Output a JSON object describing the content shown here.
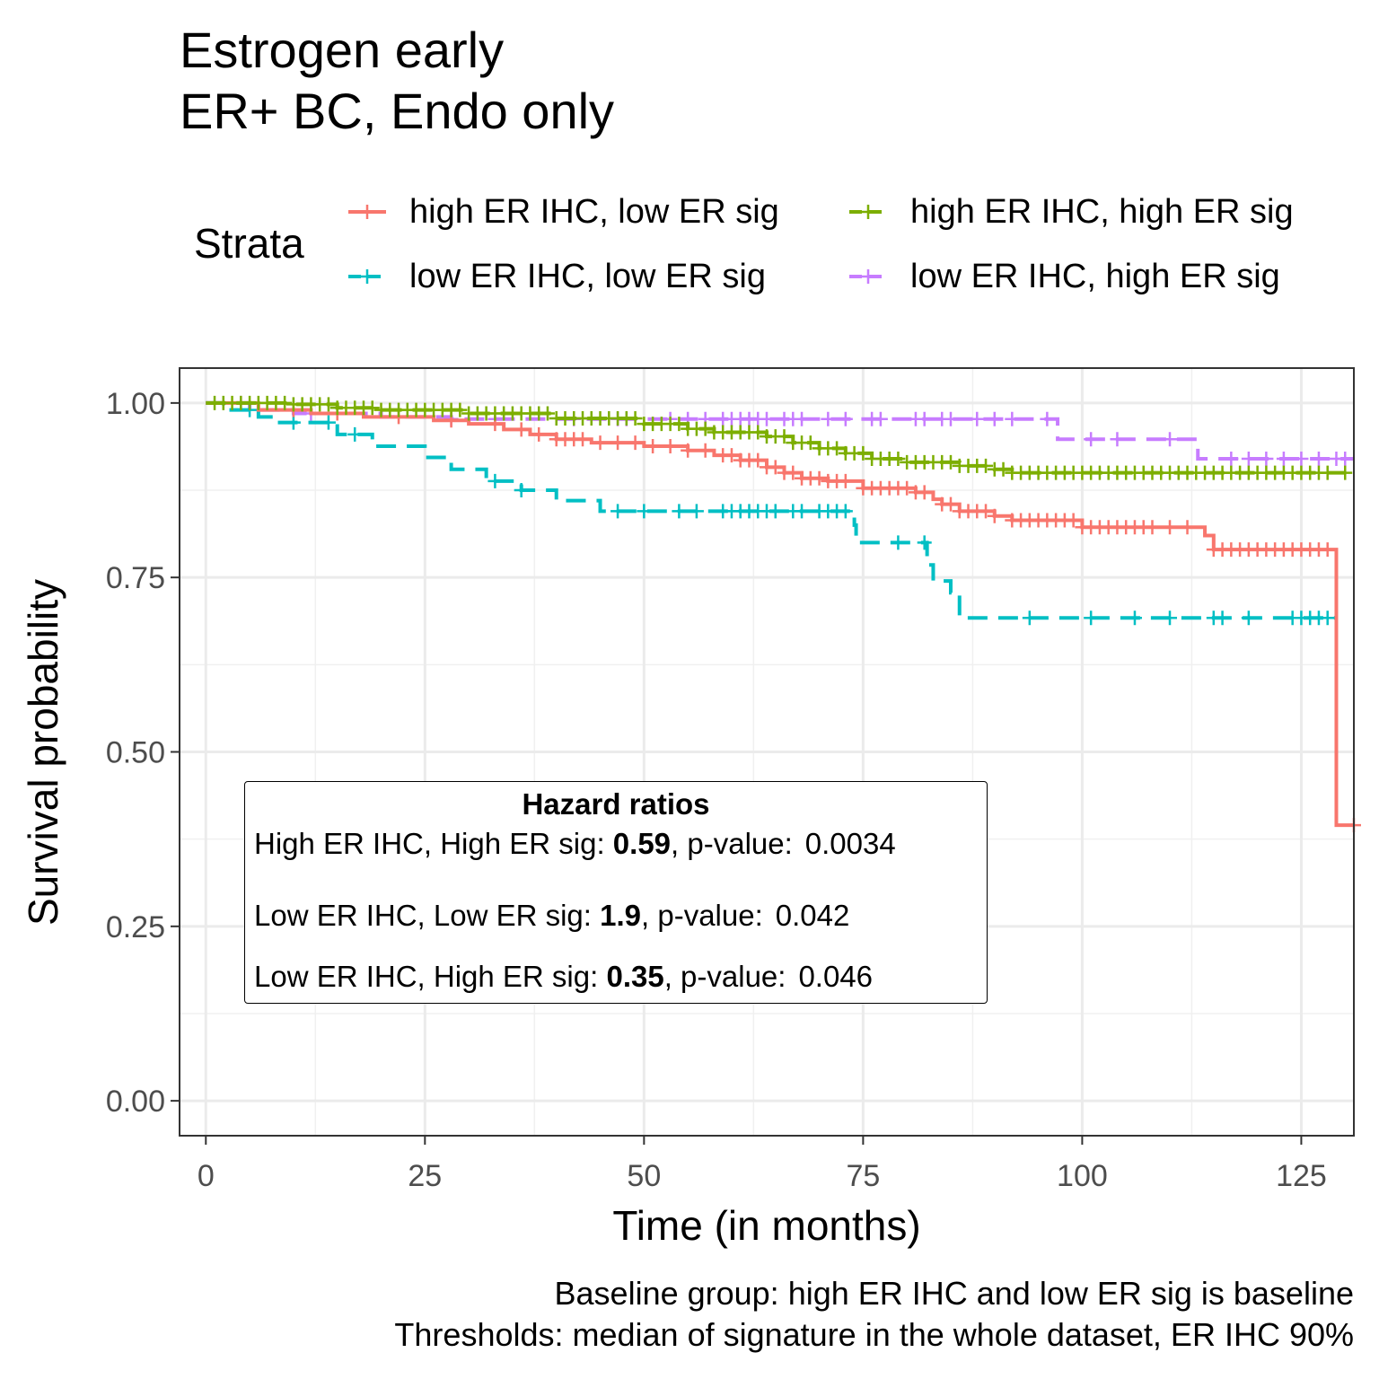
{
  "title_line1": "Estrogen early",
  "title_line2": "ER+ BC, Endo only",
  "legend": {
    "title": "Strata",
    "position": "top",
    "items": [
      {
        "label": "high ER IHC, low ER sig",
        "color": "#F8766D",
        "dash": "solid"
      },
      {
        "label": "high ER IHC, high ER sig",
        "color": "#7CAE00",
        "dash": "dashed"
      },
      {
        "label": "low ER IHC, low ER sig",
        "color": "#00BFC4",
        "dash": "dashed"
      },
      {
        "label": "low ER IHC, high ER sig",
        "color": "#C77CFF",
        "dash": "dashed"
      }
    ]
  },
  "hazard_box": {
    "title": "Hazard ratios",
    "rows": [
      {
        "prefix": "High ER IHC, High ER sig:",
        "hr": "0.59",
        "mid": ", p-value:",
        "p": "0.0034"
      },
      {
        "prefix": "Low ER IHC, Low ER sig:",
        "hr": "1.9",
        "mid": ", p-value:",
        "p": "0.042"
      },
      {
        "prefix": "Low ER IHC, High ER sig:",
        "hr": "0.35",
        "mid": ", p-value:",
        "p": "0.046"
      }
    ]
  },
  "caption_line1": "Baseline group: high ER IHC and low ER sig is baseline",
  "caption_line2": "Thresholds: median of signature in the whole dataset, ER IHC 90%",
  "chart_data": {
    "type": "line",
    "subtype": "kaplan-meier step",
    "xlabel": "Time (in months)",
    "ylabel": "Survival probability",
    "xlim": [
      -3,
      131
    ],
    "ylim": [
      -0.05,
      1.05
    ],
    "xticks": [
      0,
      25,
      50,
      75,
      100,
      125
    ],
    "xtick_labels": [
      "0",
      "25",
      "50",
      "75",
      "100",
      "125"
    ],
    "yticks": [
      0,
      0.25,
      0.5,
      0.75,
      1.0
    ],
    "ytick_labels": [
      "0.00",
      "0.25",
      "0.50",
      "0.75",
      "1.00"
    ],
    "grid": true,
    "series": [
      {
        "name": "high ER IHC, low ER sig",
        "color": "#F8766D",
        "dash": "solid",
        "steps": [
          [
            0,
            1.0
          ],
          [
            6,
            0.99
          ],
          [
            12,
            0.985
          ],
          [
            18,
            0.98
          ],
          [
            26,
            0.975
          ],
          [
            30,
            0.97
          ],
          [
            34,
            0.962
          ],
          [
            37,
            0.955
          ],
          [
            40,
            0.948
          ],
          [
            44,
            0.943
          ],
          [
            50,
            0.938
          ],
          [
            55,
            0.932
          ],
          [
            58,
            0.925
          ],
          [
            61,
            0.918
          ],
          [
            64,
            0.908
          ],
          [
            66,
            0.9
          ],
          [
            68,
            0.892
          ],
          [
            71,
            0.888
          ],
          [
            75,
            0.878
          ],
          [
            81,
            0.872
          ],
          [
            83,
            0.862
          ],
          [
            84,
            0.855
          ],
          [
            86,
            0.845
          ],
          [
            90,
            0.838
          ],
          [
            92,
            0.832
          ],
          [
            100,
            0.822
          ],
          [
            114,
            0.81
          ],
          [
            115,
            0.79
          ],
          [
            129,
            0.79
          ],
          [
            129,
            0.395
          ],
          [
            131,
            0.395
          ]
        ],
        "censor_x": [
          10,
          15,
          22,
          28,
          33,
          36,
          38,
          40,
          41,
          42,
          43,
          45,
          47,
          49,
          51,
          53,
          55,
          57,
          59,
          60,
          61,
          62,
          63,
          64,
          65,
          66,
          67,
          68,
          69,
          70,
          71,
          72,
          73,
          75,
          76,
          77,
          78,
          79,
          80,
          81,
          82,
          84,
          85,
          86,
          87,
          88,
          89,
          90,
          92,
          93,
          94,
          95,
          96,
          97,
          98,
          99,
          100,
          101,
          102,
          103,
          104,
          105,
          106,
          107,
          108,
          110,
          112,
          115,
          116,
          117,
          118,
          119,
          120,
          121,
          122,
          123,
          124,
          125,
          126,
          127,
          128,
          131
        ]
      },
      {
        "name": "high ER IHC, high ER sig",
        "color": "#7CAE00",
        "dash": "dashed",
        "steps": [
          [
            0,
            1.0
          ],
          [
            10,
            0.998
          ],
          [
            15,
            0.993
          ],
          [
            20,
            0.99
          ],
          [
            30,
            0.985
          ],
          [
            40,
            0.978
          ],
          [
            50,
            0.97
          ],
          [
            55,
            0.963
          ],
          [
            58,
            0.958
          ],
          [
            64,
            0.952
          ],
          [
            67,
            0.943
          ],
          [
            70,
            0.935
          ],
          [
            73,
            0.928
          ],
          [
            76,
            0.92
          ],
          [
            80,
            0.915
          ],
          [
            86,
            0.91
          ],
          [
            90,
            0.905
          ],
          [
            92,
            0.9
          ],
          [
            131,
            0.9
          ]
        ],
        "censor_x": [
          1,
          2,
          3,
          4,
          5,
          6,
          7,
          8,
          9,
          10,
          11,
          12,
          13,
          14,
          15,
          16,
          17,
          18,
          19,
          20,
          21,
          22,
          23,
          24,
          25,
          26,
          27,
          28,
          29,
          30,
          31,
          32,
          33,
          34,
          35,
          36,
          37,
          38,
          39,
          40,
          41,
          42,
          43,
          44,
          45,
          46,
          47,
          48,
          49,
          50,
          51,
          52,
          53,
          54,
          55,
          56,
          57,
          58,
          59,
          60,
          61,
          62,
          63,
          64,
          65,
          66,
          67,
          68,
          69,
          70,
          71,
          72,
          73,
          74,
          75,
          76,
          77,
          78,
          79,
          80,
          81,
          82,
          83,
          84,
          85,
          86,
          87,
          88,
          89,
          90,
          91,
          92,
          93,
          94,
          95,
          96,
          97,
          98,
          99,
          100,
          101,
          102,
          103,
          104,
          105,
          106,
          107,
          108,
          109,
          110,
          111,
          112,
          113,
          114,
          115,
          116,
          117,
          118,
          119,
          120,
          121,
          122,
          123,
          124,
          125,
          126,
          127,
          128,
          130
        ]
      },
      {
        "name": "low ER IHC, low ER sig",
        "color": "#00BFC4",
        "dash": "dashed",
        "steps": [
          [
            0,
            1.0
          ],
          [
            2,
            0.99
          ],
          [
            6,
            0.98
          ],
          [
            8,
            0.972
          ],
          [
            15,
            0.955
          ],
          [
            19,
            0.938
          ],
          [
            25,
            0.922
          ],
          [
            28,
            0.905
          ],
          [
            32,
            0.888
          ],
          [
            36,
            0.875
          ],
          [
            40,
            0.86
          ],
          [
            45,
            0.845
          ],
          [
            74,
            0.825
          ],
          [
            74.2,
            0.8
          ],
          [
            82,
            0.8
          ],
          [
            82.3,
            0.768
          ],
          [
            83,
            0.745
          ],
          [
            85,
            0.728
          ],
          [
            86,
            0.692
          ],
          [
            129,
            0.692
          ]
        ],
        "censor_x": [
          5,
          10,
          14,
          17,
          33,
          36,
          47,
          50,
          54,
          56,
          59,
          60,
          61,
          62,
          63,
          64,
          65,
          67,
          68,
          70,
          71,
          72,
          73,
          79,
          82,
          94,
          101,
          106,
          110,
          115,
          116,
          119,
          124,
          125,
          126,
          127,
          128
        ]
      },
      {
        "name": "low ER IHC, high ER sig",
        "color": "#C77CFF",
        "dash": "dashed",
        "steps": [
          [
            0,
            1.0
          ],
          [
            5,
            0.99
          ],
          [
            10,
            0.985
          ],
          [
            20,
            0.98
          ],
          [
            28,
            0.977
          ],
          [
            97,
            0.977
          ],
          [
            97.2,
            0.948
          ],
          [
            113,
            0.948
          ],
          [
            113.2,
            0.92
          ],
          [
            131,
            0.92
          ]
        ],
        "censor_x": [
          4,
          12,
          28,
          33,
          42,
          47,
          48,
          53,
          55,
          57,
          59,
          60,
          61,
          62,
          63,
          64,
          66,
          67,
          68,
          71,
          73,
          76,
          77,
          81,
          82,
          84,
          85,
          88,
          90,
          92,
          96,
          101,
          104,
          110,
          117,
          119,
          121,
          123,
          125,
          127,
          129,
          130
        ]
      }
    ]
  }
}
